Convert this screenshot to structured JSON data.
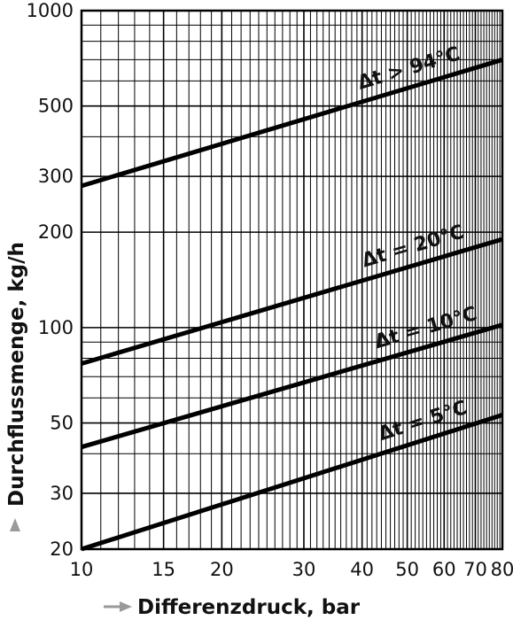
{
  "chart_data": {
    "type": "line",
    "xscale": "log",
    "yscale": "log",
    "xlim": [
      10,
      80
    ],
    "ylim": [
      20,
      1000
    ],
    "grid": true,
    "xlabel": "Differenzdruck, bar",
    "ylabel": "Durchflussmenge, kg/h",
    "x_ticks": [
      "10",
      "15",
      "20",
      "30",
      "40",
      "50",
      "60",
      "70",
      "80"
    ],
    "y_ticks": [
      "20",
      "30",
      "50",
      "100",
      "200",
      "300",
      "500",
      "1000"
    ],
    "series": [
      {
        "name": "Δt > 94°C",
        "x": [
          10,
          80
        ],
        "y": [
          280,
          700
        ]
      },
      {
        "name": "Δt = 20°C",
        "x": [
          10,
          80
        ],
        "y": [
          77,
          190
        ]
      },
      {
        "name": "Δt = 10°C",
        "x": [
          10,
          80
        ],
        "y": [
          42,
          102
        ]
      },
      {
        "name": "Δt = 5°C",
        "x": [
          10,
          80
        ],
        "y": [
          20,
          53
        ]
      }
    ]
  }
}
